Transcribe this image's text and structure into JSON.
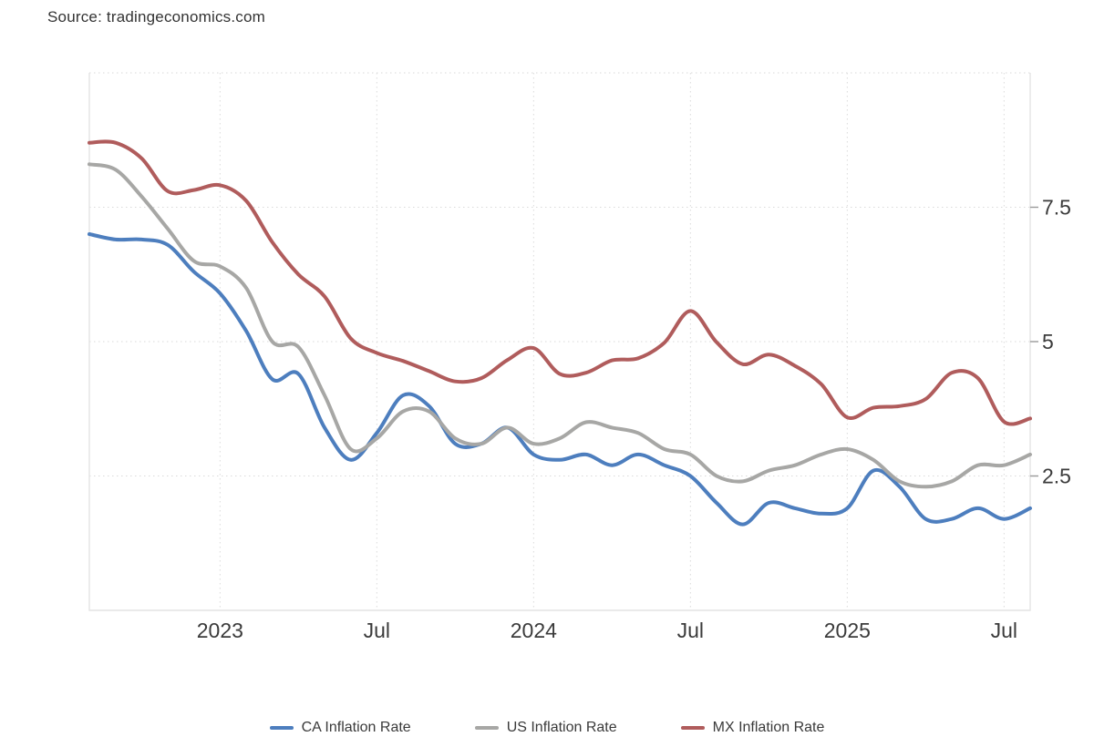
{
  "source_text": "Source: tradingeconomics.com",
  "chart_data": {
    "type": "line",
    "title": "",
    "xlabel": "",
    "ylabel": "",
    "ylim": [
      0,
      10
    ],
    "grid": "dotted",
    "legend_position": "bottom",
    "x": [
      "2022-08",
      "2022-09",
      "2022-10",
      "2022-11",
      "2022-12",
      "2023-01",
      "2023-02",
      "2023-03",
      "2023-04",
      "2023-05",
      "2023-06",
      "2023-07",
      "2023-08",
      "2023-09",
      "2023-10",
      "2023-11",
      "2023-12",
      "2024-01",
      "2024-02",
      "2024-03",
      "2024-04",
      "2024-05",
      "2024-06",
      "2024-07",
      "2024-08",
      "2024-09",
      "2024-10",
      "2024-11",
      "2024-12",
      "2025-01",
      "2025-02",
      "2025-03",
      "2025-04",
      "2025-05",
      "2025-06",
      "2025-07",
      "2025-08"
    ],
    "x_ticks": [
      {
        "label": "2023",
        "month": "2023-01"
      },
      {
        "label": "Jul",
        "month": "2023-07"
      },
      {
        "label": "2024",
        "month": "2024-01"
      },
      {
        "label": "Jul",
        "month": "2024-07"
      },
      {
        "label": "2025",
        "month": "2025-01"
      },
      {
        "label": "Jul",
        "month": "2025-07"
      }
    ],
    "y_ticks": [
      {
        "label": "7.5",
        "value": 7.5
      },
      {
        "label": "5",
        "value": 5
      },
      {
        "label": "2.5",
        "value": 2.5
      }
    ],
    "y_grid_values": [
      10,
      7.5,
      5,
      2.5
    ],
    "series": [
      {
        "id": "ca",
        "name": "CA Inflation Rate",
        "color": "#4d7ebe",
        "values": [
          7.0,
          6.9,
          6.9,
          6.8,
          6.3,
          5.9,
          5.2,
          4.3,
          4.4,
          3.4,
          2.8,
          3.3,
          4.0,
          3.8,
          3.1,
          3.1,
          3.4,
          2.9,
          2.8,
          2.9,
          2.7,
          2.9,
          2.7,
          2.5,
          2.0,
          1.6,
          2.0,
          1.9,
          1.8,
          1.9,
          2.6,
          2.3,
          1.7,
          1.7,
          1.9,
          1.7,
          1.9
        ]
      },
      {
        "id": "us",
        "name": "US Inflation Rate",
        "color": "#a7a7a5",
        "values": [
          8.3,
          8.2,
          7.7,
          7.1,
          6.5,
          6.4,
          6.0,
          5.0,
          4.9,
          4.0,
          3.0,
          3.2,
          3.7,
          3.7,
          3.2,
          3.1,
          3.4,
          3.1,
          3.2,
          3.5,
          3.4,
          3.3,
          3.0,
          2.9,
          2.5,
          2.4,
          2.6,
          2.7,
          2.9,
          3.0,
          2.8,
          2.4,
          2.3,
          2.4,
          2.7,
          2.7,
          2.9
        ]
      },
      {
        "id": "mx",
        "name": "MX Inflation Rate",
        "color": "#b05c5c",
        "values": [
          8.7,
          8.7,
          8.41,
          7.8,
          7.82,
          7.91,
          7.62,
          6.85,
          6.25,
          5.84,
          5.06,
          4.79,
          4.64,
          4.45,
          4.26,
          4.32,
          4.66,
          4.88,
          4.4,
          4.42,
          4.65,
          4.69,
          4.98,
          5.57,
          4.99,
          4.58,
          4.76,
          4.55,
          4.21,
          3.59,
          3.77,
          3.8,
          3.93,
          4.42,
          4.32,
          3.51,
          3.57
        ]
      }
    ],
    "colors": {
      "axis_text": "#3b3b3b",
      "grid": "#dadada",
      "border": "#e4e4e4"
    }
  }
}
